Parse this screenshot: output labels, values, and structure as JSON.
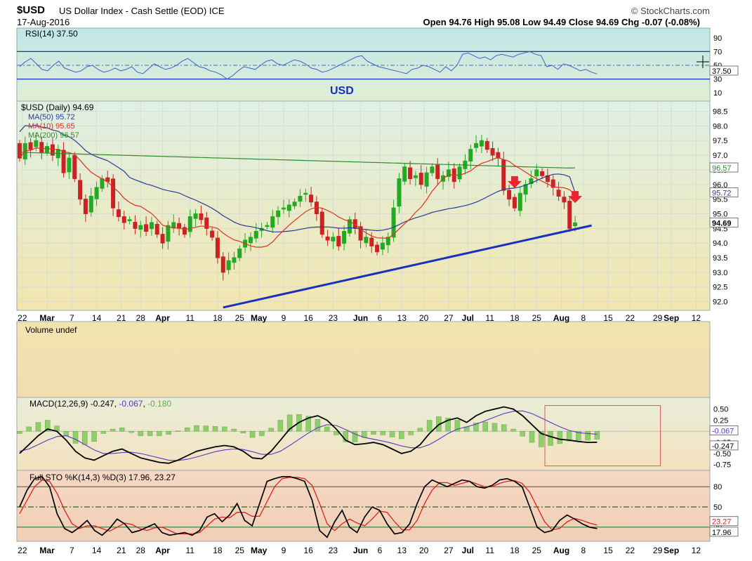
{
  "header": {
    "symbol": "$USD",
    "description": "US Dollar Index - Cash Settle (EOD) ICE",
    "date": "17-Aug-2016",
    "brand": "© StockCharts.com",
    "ohlc": "Open 94.76  High 95.08  Low 94.49  Close 94.69  Chg -0.07 (-0.08%)"
  },
  "annotation": {
    "label": "USD"
  },
  "colors": {
    "rsi": "#3a5fcd",
    "ma50": "#2a3a9a",
    "ma10": "#dd3322",
    "ma200": "#2e8b2e",
    "up": "#22aa22",
    "down": "#cc2222",
    "trend": "#1a2fbf",
    "marker": "#ee2233"
  },
  "chart_data": [
    {
      "type": "line",
      "name": "rsi",
      "legend": "RSI(14) 37.50",
      "ylim": [
        0,
        100
      ],
      "ticks": [
        90,
        70,
        50,
        30,
        10
      ],
      "overbought": 70,
      "oversold": 30,
      "last_label": "37.50",
      "values": [
        48,
        55,
        60,
        52,
        44,
        42,
        50,
        56,
        46,
        43,
        40,
        42,
        48,
        50,
        44,
        40,
        42,
        46,
        42,
        44,
        48,
        40,
        38,
        45,
        52,
        48,
        44,
        46,
        50,
        56,
        60,
        54,
        48,
        46,
        42,
        40,
        36,
        30,
        35,
        42,
        48,
        46,
        44,
        50,
        56,
        58,
        52,
        50,
        54,
        58,
        56,
        52,
        46,
        44,
        40,
        42,
        46,
        50,
        54,
        58,
        62,
        64,
        56,
        52,
        48,
        46,
        44,
        42,
        40,
        38,
        44,
        46,
        50,
        48,
        44,
        40,
        48,
        42,
        50,
        66,
        68,
        64,
        60,
        62,
        58,
        64,
        66,
        64,
        62,
        66,
        68,
        70,
        66,
        64,
        48,
        50,
        44,
        52,
        50,
        46,
        42,
        44,
        40,
        37.5
      ]
    },
    {
      "type": "candlestick",
      "name": "price",
      "legend": [
        "$USD (Daily) 94.69",
        "MA(50) 95.72",
        "MA(10) 95.65",
        "MA(200) 96.57"
      ],
      "ylim": [
        91.75,
        98.8
      ],
      "ticks": [
        98.5,
        98.0,
        97.5,
        97.0,
        96.5,
        96.0,
        95.5,
        95.0,
        94.5,
        94.0,
        93.5,
        93.0,
        92.5,
        92.0
      ],
      "tick_labels": [
        "98.5",
        "98.0",
        "97.5",
        "97.0",
        "96.5",
        "96.0",
        "95.5",
        "95.0",
        "94.5",
        "94.0",
        "93.5",
        "93.0",
        "92.5",
        "92.0"
      ],
      "last_labels": [
        "96.57",
        "95.72",
        "94.69"
      ],
      "closes": [
        96.9,
        97.4,
        97.2,
        97.5,
        97.1,
        97.3,
        97.0,
        97.2,
        96.4,
        96.9,
        96.2,
        95.5,
        95.0,
        95.6,
        95.9,
        96.2,
        96.1,
        95.2,
        94.9,
        94.7,
        94.8,
        94.5,
        94.6,
        94.4,
        94.7,
        94.3,
        94.0,
        94.6,
        94.7,
        94.5,
        94.3,
        94.9,
        95.0,
        94.8,
        94.5,
        94.2,
        93.5,
        93.0,
        93.4,
        93.5,
        93.8,
        94.1,
        94.2,
        94.4,
        94.5,
        94.6,
        94.9,
        95.1,
        95.2,
        95.3,
        95.4,
        95.6,
        95.7,
        95.4,
        95.0,
        94.3,
        94.1,
        94.2,
        93.9,
        94.4,
        94.8,
        94.5,
        94.1,
        94.2,
        93.9,
        93.7,
        94.0,
        94.2,
        95.2,
        96.2,
        96.6,
        96.2,
        96.3,
        96.0,
        96.4,
        96.6,
        96.2,
        96.3,
        96.5,
        96.1,
        96.6,
        96.8,
        97.2,
        97.4,
        97.5,
        97.2,
        97.0,
        96.9,
        95.8,
        95.5,
        95.2,
        95.7,
        96.0,
        96.2,
        96.5,
        96.3,
        96.1,
        95.9,
        95.6,
        95.4,
        94.5,
        94.69
      ],
      "ma10_end": 95.65,
      "ma50_end": 95.72,
      "ma200_end": 96.57,
      "trendline": [
        [
          37,
          91.8
        ],
        [
          104,
          94.6
        ]
      ],
      "markers": [
        90,
        101
      ],
      "x_ticks": [
        {
          "i": 0.5,
          "l": "22"
        },
        {
          "i": 5,
          "l": "Mar"
        },
        {
          "i": 9.5,
          "l": "7"
        },
        {
          "i": 14,
          "l": "14"
        },
        {
          "i": 18.5,
          "l": "21"
        },
        {
          "i": 22,
          "l": "28"
        },
        {
          "i": 26,
          "l": "Apr"
        },
        {
          "i": 31,
          "l": "11"
        },
        {
          "i": 36,
          "l": "18"
        },
        {
          "i": 40,
          "l": "25"
        },
        {
          "i": 43.5,
          "l": "May"
        },
        {
          "i": 48,
          "l": "9"
        },
        {
          "i": 52.5,
          "l": "16"
        },
        {
          "i": 57,
          "l": "23"
        },
        {
          "i": 62,
          "l": "Jun"
        },
        {
          "i": 65.5,
          "l": "6"
        },
        {
          "i": 69.5,
          "l": "13"
        },
        {
          "i": 73.5,
          "l": "20"
        },
        {
          "i": 78,
          "l": "27"
        },
        {
          "i": 81.5,
          "l": "Jul"
        },
        {
          "i": 85.5,
          "l": "11"
        },
        {
          "i": 90,
          "l": "18"
        },
        {
          "i": 94,
          "l": "25"
        },
        {
          "i": 98.5,
          "l": "Aug"
        },
        {
          "i": 102.5,
          "l": "8"
        },
        {
          "i": 107,
          "l": "15"
        },
        {
          "i": 111,
          "l": "22"
        },
        {
          "i": 116,
          "l": "29"
        },
        {
          "i": 118.5,
          "l": "Sep"
        },
        {
          "i": 123,
          "l": "12"
        }
      ]
    },
    {
      "type": "bar",
      "name": "volume",
      "legend": "Volume undef"
    },
    {
      "type": "line",
      "name": "macd",
      "legend": [
        "MACD(12,26,9) -0.247",
        "-0.067",
        "-0.180"
      ],
      "ylim": [
        -0.85,
        0.7
      ],
      "ticks": [
        0.5,
        0.25,
        -0.25,
        -0.5,
        -0.75
      ],
      "tick_labels": [
        "0.50",
        "0.25",
        "-0.25",
        "-0.50",
        "-0.75"
      ],
      "last_labels": [
        "-0.067",
        "-0.247"
      ],
      "macd_values": [
        -0.5,
        -0.3,
        -0.1,
        0.05,
        0.0,
        -0.2,
        -0.45,
        -0.6,
        -0.65,
        -0.55,
        -0.45,
        -0.4,
        -0.5,
        -0.6,
        -0.65,
        -0.7,
        -0.72,
        -0.65,
        -0.55,
        -0.45,
        -0.4,
        -0.35,
        -0.32,
        -0.35,
        -0.45,
        -0.6,
        -0.62,
        -0.45,
        -0.2,
        0.05,
        0.2,
        0.3,
        0.35,
        0.25,
        0.05,
        -0.2,
        -0.3,
        -0.28,
        -0.25,
        -0.3,
        -0.4,
        -0.5,
        -0.45,
        -0.3,
        -0.05,
        0.15,
        0.25,
        0.3,
        0.2,
        0.35,
        0.45,
        0.5,
        0.55,
        0.5,
        0.35,
        0.15,
        -0.05,
        -0.12,
        -0.18,
        -0.2,
        -0.23,
        -0.25,
        -0.247
      ],
      "signal_values": [
        -0.45,
        -0.4,
        -0.3,
        -0.2,
        -0.12,
        -0.1,
        -0.18,
        -0.3,
        -0.42,
        -0.5,
        -0.5,
        -0.48,
        -0.47,
        -0.5,
        -0.55,
        -0.6,
        -0.65,
        -0.66,
        -0.63,
        -0.58,
        -0.52,
        -0.46,
        -0.42,
        -0.4,
        -0.41,
        -0.46,
        -0.52,
        -0.52,
        -0.45,
        -0.32,
        -0.18,
        -0.04,
        0.08,
        0.15,
        0.13,
        0.04,
        -0.06,
        -0.14,
        -0.18,
        -0.22,
        -0.27,
        -0.33,
        -0.37,
        -0.37,
        -0.3,
        -0.18,
        -0.05,
        0.05,
        0.1,
        0.16,
        0.24,
        0.32,
        0.4,
        0.45,
        0.46,
        0.4,
        0.3,
        0.2,
        0.1,
        0.02,
        -0.03,
        -0.05,
        -0.067
      ],
      "highlight_box": [
        95.5,
        116.5,
        0.58,
        -0.78
      ]
    },
    {
      "type": "line",
      "name": "stochastic",
      "legend": "Full STO %K(14,3) %D(3) 17.96, 23.27",
      "ylim": [
        0,
        100
      ],
      "ticks": [
        80,
        50,
        20
      ],
      "tick_labels": [
        "80",
        "50",
        "20"
      ],
      "last_labels": [
        "23.27",
        "17.96"
      ],
      "k_values": [
        50,
        75,
        92,
        95,
        80,
        40,
        18,
        12,
        20,
        30,
        15,
        8,
        18,
        32,
        25,
        12,
        15,
        20,
        25,
        12,
        8,
        10,
        12,
        8,
        15,
        35,
        40,
        28,
        38,
        55,
        30,
        22,
        55,
        88,
        92,
        95,
        95,
        92,
        88,
        60,
        15,
        5,
        28,
        45,
        20,
        12,
        35,
        50,
        45,
        25,
        10,
        12,
        25,
        55,
        80,
        90,
        85,
        80,
        85,
        90,
        88,
        80,
        78,
        82,
        90,
        92,
        88,
        80,
        50,
        20,
        12,
        15,
        30,
        38,
        32,
        25,
        20,
        17.96
      ],
      "d_values": [
        40,
        60,
        80,
        90,
        88,
        70,
        45,
        25,
        18,
        22,
        22,
        18,
        14,
        20,
        26,
        24,
        18,
        15,
        19,
        20,
        15,
        10,
        10,
        10,
        12,
        22,
        32,
        35,
        34,
        42,
        42,
        36,
        36,
        58,
        80,
        92,
        94,
        94,
        92,
        82,
        55,
        25,
        15,
        25,
        32,
        26,
        22,
        32,
        44,
        42,
        28,
        16,
        16,
        30,
        55,
        75,
        86,
        86,
        82,
        85,
        88,
        84,
        80,
        80,
        85,
        88,
        89,
        85,
        72,
        50,
        28,
        16,
        18,
        28,
        33,
        30,
        26,
        23.27
      ]
    }
  ],
  "bottom_axis": [
    {
      "i": 0.5,
      "l": "22"
    },
    {
      "i": 5,
      "l": "Mar"
    },
    {
      "i": 9.5,
      "l": "7"
    },
    {
      "i": 14,
      "l": "14"
    },
    {
      "i": 18.5,
      "l": "21"
    },
    {
      "i": 22,
      "l": "28"
    },
    {
      "i": 26,
      "l": "Apr"
    },
    {
      "i": 31,
      "l": "11"
    },
    {
      "i": 36,
      "l": "18"
    },
    {
      "i": 40,
      "l": "25"
    },
    {
      "i": 43.5,
      "l": "May"
    },
    {
      "i": 48,
      "l": "9"
    },
    {
      "i": 52.5,
      "l": "16"
    },
    {
      "i": 57,
      "l": "23"
    },
    {
      "i": 62,
      "l": "Jun"
    },
    {
      "i": 65.5,
      "l": "6"
    },
    {
      "i": 69.5,
      "l": "13"
    },
    {
      "i": 73.5,
      "l": "20"
    },
    {
      "i": 78,
      "l": "27"
    },
    {
      "i": 81.5,
      "l": "Jul"
    },
    {
      "i": 85.5,
      "l": "11"
    },
    {
      "i": 90,
      "l": "18"
    },
    {
      "i": 94,
      "l": "25"
    },
    {
      "i": 98.5,
      "l": "Aug"
    },
    {
      "i": 102.5,
      "l": "8"
    },
    {
      "i": 107,
      "l": "15"
    },
    {
      "i": 111,
      "l": "22"
    },
    {
      "i": 116,
      "l": "29"
    },
    {
      "i": 118.5,
      "l": "Sep"
    },
    {
      "i": 123,
      "l": "12"
    }
  ]
}
